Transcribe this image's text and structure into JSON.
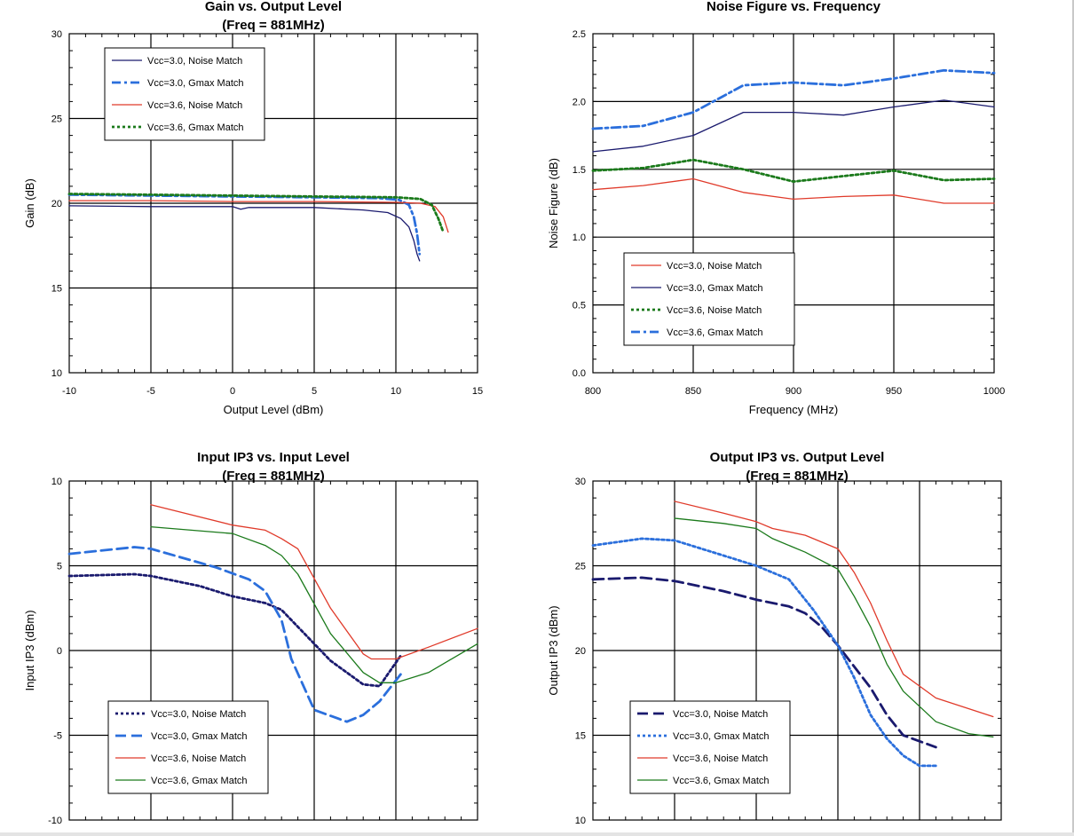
{
  "chart_data": [
    {
      "type": "line",
      "title": "Gain vs. Output Level",
      "subtitle": "(Freq = 881MHz)",
      "xlabel": "Output Level (dBm)",
      "ylabel": "Gain (dB)",
      "xlim": [
        -10,
        15
      ],
      "ylim": [
        10,
        30
      ],
      "xticks": [
        -10,
        -5,
        0,
        5,
        10,
        15
      ],
      "yticks": [
        10,
        15,
        20,
        25,
        30
      ],
      "xtick_labels": [
        "-10",
        "-5",
        "0",
        "5",
        "10",
        "15"
      ],
      "ytick_labels": [
        "10",
        "15",
        "20",
        "25",
        "30"
      ],
      "legend_position": "top-left",
      "series": [
        {
          "name": "Vcc=3.0, Noise Match",
          "color": "#1a1a6e",
          "style": "solid",
          "x": [
            -10,
            -5,
            0,
            0.5,
            1,
            5,
            8,
            9.5,
            10.3,
            10.8,
            11.1,
            11.3,
            11.45
          ],
          "y": [
            19.85,
            19.8,
            19.8,
            19.65,
            19.75,
            19.75,
            19.6,
            19.45,
            19.1,
            18.6,
            17.8,
            17.0,
            16.6
          ]
        },
        {
          "name": "Vcc=3.0, Gmax Match",
          "color": "#2b6fdc",
          "style": "dashdot",
          "x": [
            -10,
            -5,
            0,
            5,
            9,
            10.2,
            10.8,
            11.1,
            11.3,
            11.45
          ],
          "y": [
            20.5,
            20.45,
            20.4,
            20.35,
            20.3,
            20.2,
            19.9,
            19.2,
            18.2,
            17.0
          ]
        },
        {
          "name": "Vcc=3.6, Noise Match",
          "color": "#e03a2a",
          "style": "solid",
          "x": [
            -10,
            -5,
            0,
            5,
            10,
            11.5,
            12.4,
            12.9,
            13.2
          ],
          "y": [
            20.15,
            20.15,
            20.1,
            20.1,
            20.05,
            20.0,
            19.8,
            19.2,
            18.3
          ]
        },
        {
          "name": "Vcc=3.6, Gmax Match",
          "color": "#1b7a1b",
          "style": "dotted",
          "x": [
            -10,
            -5,
            0,
            5,
            10,
            11.5,
            12.2,
            12.6,
            12.9
          ],
          "y": [
            20.55,
            20.5,
            20.45,
            20.4,
            20.35,
            20.25,
            19.9,
            19.1,
            18.3
          ]
        }
      ]
    },
    {
      "type": "line",
      "title": "Noise Figure vs. Frequency",
      "subtitle": "",
      "xlabel": "Frequency (MHz)",
      "ylabel": "Noise Figure (dB)",
      "xlim": [
        800,
        1000
      ],
      "ylim": [
        0,
        2.5
      ],
      "xticks": [
        800,
        850,
        900,
        950,
        1000
      ],
      "yticks": [
        0,
        0.5,
        1,
        1.5,
        2,
        2.5
      ],
      "xtick_labels": [
        "800",
        "850",
        "900",
        "950",
        "1000"
      ],
      "ytick_labels": [
        "0.0",
        "0.5",
        "1.0",
        "1.5",
        "2.0",
        "2.5"
      ],
      "legend_position": "bottom-left",
      "series": [
        {
          "name": "Vcc=3.0, Noise Match",
          "color": "#e03a2a",
          "style": "solid",
          "x": [
            800,
            825,
            850,
            875,
            900,
            925,
            950,
            975,
            1000
          ],
          "y": [
            1.35,
            1.38,
            1.43,
            1.33,
            1.28,
            1.3,
            1.31,
            1.25,
            1.25
          ]
        },
        {
          "name": "Vcc=3.0, Gmax Match",
          "color": "#1a1a6e",
          "style": "solid",
          "x": [
            800,
            825,
            850,
            875,
            900,
            925,
            950,
            975,
            1000
          ],
          "y": [
            1.63,
            1.67,
            1.75,
            1.92,
            1.92,
            1.9,
            1.96,
            2.01,
            1.96
          ]
        },
        {
          "name": "Vcc=3.6, Noise Match",
          "color": "#1b7a1b",
          "style": "dotted",
          "x": [
            800,
            825,
            850,
            875,
            900,
            925,
            950,
            975,
            1000
          ],
          "y": [
            1.49,
            1.51,
            1.57,
            1.5,
            1.41,
            1.45,
            1.49,
            1.42,
            1.43
          ]
        },
        {
          "name": "Vcc=3.6, Gmax Match",
          "color": "#2b6fdc",
          "style": "dashdot",
          "x": [
            800,
            825,
            850,
            875,
            900,
            925,
            950,
            975,
            1000
          ],
          "y": [
            1.8,
            1.82,
            1.92,
            2.12,
            2.14,
            2.12,
            2.17,
            2.23,
            2.21
          ]
        }
      ]
    },
    {
      "type": "line",
      "title": "Input IP3 vs. Input Level",
      "subtitle": "(Freq = 881MHz)",
      "xlabel": "",
      "ylabel": "Input IP3 (dBm)",
      "xlim": [
        -30,
        -5
      ],
      "ylim": [
        -10,
        10
      ],
      "xticks": [
        -30,
        -25,
        -20,
        -15,
        -10,
        -5
      ],
      "yticks": [
        -10,
        -5,
        0,
        5,
        10
      ],
      "xtick_labels": [],
      "ytick_labels": [
        "-10",
        "-5",
        "0",
        "5",
        "10"
      ],
      "legend_position": "bottom-left",
      "series": [
        {
          "name": "Vcc=3.0, Noise Match",
          "color": "#1a1a6e",
          "style": "dotted",
          "x": [
            -30,
            -26,
            -25,
            -22,
            -20,
            -18,
            -17,
            -16,
            -14,
            -12,
            -11,
            -9.7
          ],
          "y": [
            4.4,
            4.5,
            4.4,
            3.8,
            3.2,
            2.8,
            2.4,
            1.4,
            -0.6,
            -2.0,
            -2.1,
            -0.3
          ]
        },
        {
          "name": "Vcc=3.0, Gmax Match",
          "color": "#2b6fdc",
          "style": "dashed",
          "x": [
            -30,
            -26,
            -25,
            -21,
            -19,
            -18,
            -17,
            -16.4,
            -15,
            -13,
            -12,
            -11,
            -9.7
          ],
          "y": [
            5.7,
            6.1,
            6.0,
            4.9,
            4.2,
            3.5,
            1.8,
            -0.5,
            -3.5,
            -4.2,
            -3.8,
            -3.0,
            -1.4
          ]
        },
        {
          "name": "Vcc=3.6, Noise Match",
          "color": "#e03a2a",
          "style": "solid",
          "x": [
            -25,
            -20,
            -18,
            -17,
            -16,
            -14,
            -12,
            -11.5,
            -10,
            -8,
            -5
          ],
          "y": [
            8.6,
            7.4,
            7.1,
            6.6,
            6.0,
            2.5,
            -0.2,
            -0.5,
            -0.5,
            0.2,
            1.3
          ]
        },
        {
          "name": "Vcc=3.6, Gmax Match",
          "color": "#1b7a1b",
          "style": "solid",
          "x": [
            -25,
            -20,
            -18,
            -17,
            -16,
            -14,
            -12,
            -11,
            -10,
            -8,
            -5
          ],
          "y": [
            7.3,
            6.9,
            6.2,
            5.6,
            4.5,
            1.0,
            -1.3,
            -1.9,
            -1.9,
            -1.3,
            0.4
          ]
        }
      ]
    },
    {
      "type": "line",
      "title": "Output IP3 vs. Output Level",
      "subtitle": "(Freq = 881MHz)",
      "xlabel": "",
      "ylabel": "Output IP3 (dBm)",
      "xlim": [
        -20,
        5
      ],
      "ylim": [
        10,
        30
      ],
      "xticks": [
        -20,
        -15,
        -10,
        -5,
        0,
        5
      ],
      "yticks": [
        10,
        15,
        20,
        25,
        30
      ],
      "xtick_labels": [],
      "ytick_labels": [
        "10",
        "15",
        "20",
        "25",
        "30"
      ],
      "legend_position": "bottom-left",
      "series": [
        {
          "name": "Vcc=3.0, Noise Match",
          "color": "#1a1a6e",
          "style": "dashed",
          "x": [
            -20,
            -17,
            -15,
            -12,
            -10,
            -8,
            -7,
            -6,
            -5,
            -3,
            -2,
            -1,
            1
          ],
          "y": [
            24.2,
            24.3,
            24.1,
            23.5,
            23.0,
            22.6,
            22.2,
            21.4,
            20.3,
            17.8,
            16.2,
            15.0,
            14.3
          ]
        },
        {
          "name": "Vcc=3.0, Gmax Match",
          "color": "#2b6fdc",
          "style": "dotted",
          "x": [
            -20,
            -17,
            -15,
            -12,
            -10,
            -8,
            -7,
            -6.5,
            -5,
            -4,
            -3,
            -2,
            -1,
            0,
            1
          ],
          "y": [
            26.2,
            26.6,
            26.5,
            25.6,
            25.0,
            24.2,
            23.0,
            22.4,
            20.3,
            18.4,
            16.2,
            14.8,
            13.8,
            13.2,
            13.2
          ]
        },
        {
          "name": "Vcc=3.6, Noise Match",
          "color": "#e03a2a",
          "style": "solid",
          "x": [
            -15,
            -12,
            -10,
            -9,
            -7,
            -5,
            -4,
            -3,
            -2,
            -1,
            1,
            4.5
          ],
          "y": [
            28.8,
            28.1,
            27.6,
            27.2,
            26.8,
            26.0,
            24.6,
            22.8,
            20.6,
            18.6,
            17.2,
            16.1
          ]
        },
        {
          "name": "Vcc=3.6, Gmax Match",
          "color": "#1b7a1b",
          "style": "solid",
          "x": [
            -15,
            -12,
            -10,
            -9,
            -7,
            -5,
            -4,
            -3,
            -2,
            -1,
            1,
            3,
            4.5
          ],
          "y": [
            27.8,
            27.5,
            27.2,
            26.6,
            25.8,
            24.8,
            23.2,
            21.4,
            19.2,
            17.6,
            15.8,
            15.1,
            14.9
          ]
        }
      ]
    }
  ]
}
